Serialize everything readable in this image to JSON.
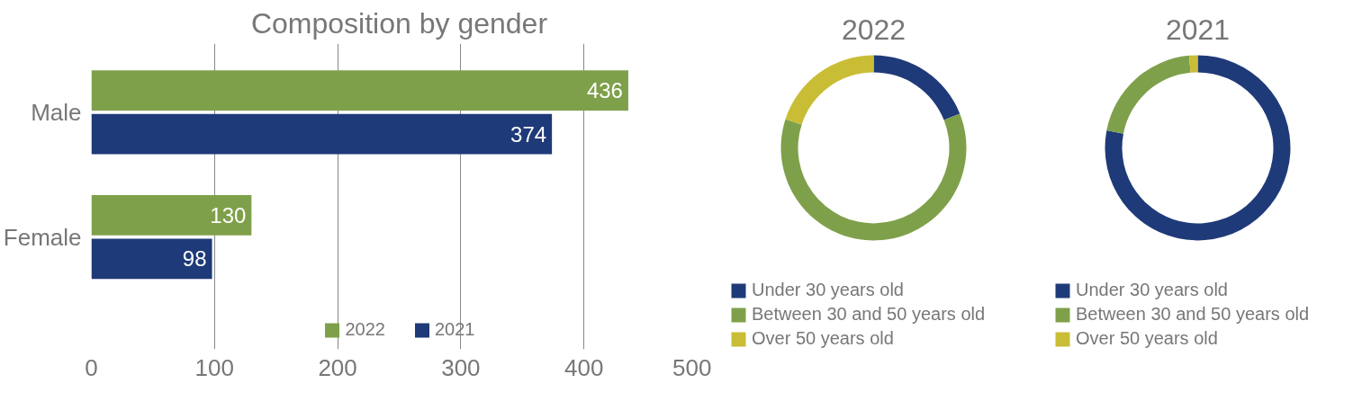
{
  "chart_data": [
    {
      "type": "bar",
      "orientation": "horizontal",
      "title": "Composition by gender",
      "categories": [
        "Male",
        "Female"
      ],
      "series": [
        {
          "name": "2022",
          "color": "#7fa04a",
          "values": [
            436,
            130
          ]
        },
        {
          "name": "2021",
          "color": "#1f3a78",
          "values": [
            374,
            98
          ]
        }
      ],
      "xlim": [
        0,
        500
      ],
      "xticks": [
        0,
        100,
        200,
        300,
        400,
        500
      ],
      "grid": "x",
      "legend": "bottom",
      "data_labels": true
    },
    {
      "type": "donut",
      "title": "2022",
      "categories": [
        "Under 30 years old",
        "Between 30 and 50 years old",
        "Over 50 years old"
      ],
      "values": [
        19,
        61,
        20
      ],
      "colors": [
        "#1f3a78",
        "#7fa04a",
        "#c9bd36"
      ],
      "legend": "bottom"
    },
    {
      "type": "donut",
      "title": "2021",
      "categories": [
        "Under 30 years old",
        "Between 30 and 50 years old",
        "Over 50 years old"
      ],
      "values": [
        78,
        20.5,
        1.5
      ],
      "colors": [
        "#1f3a78",
        "#7fa04a",
        "#c9bd36"
      ],
      "legend": "bottom"
    }
  ]
}
